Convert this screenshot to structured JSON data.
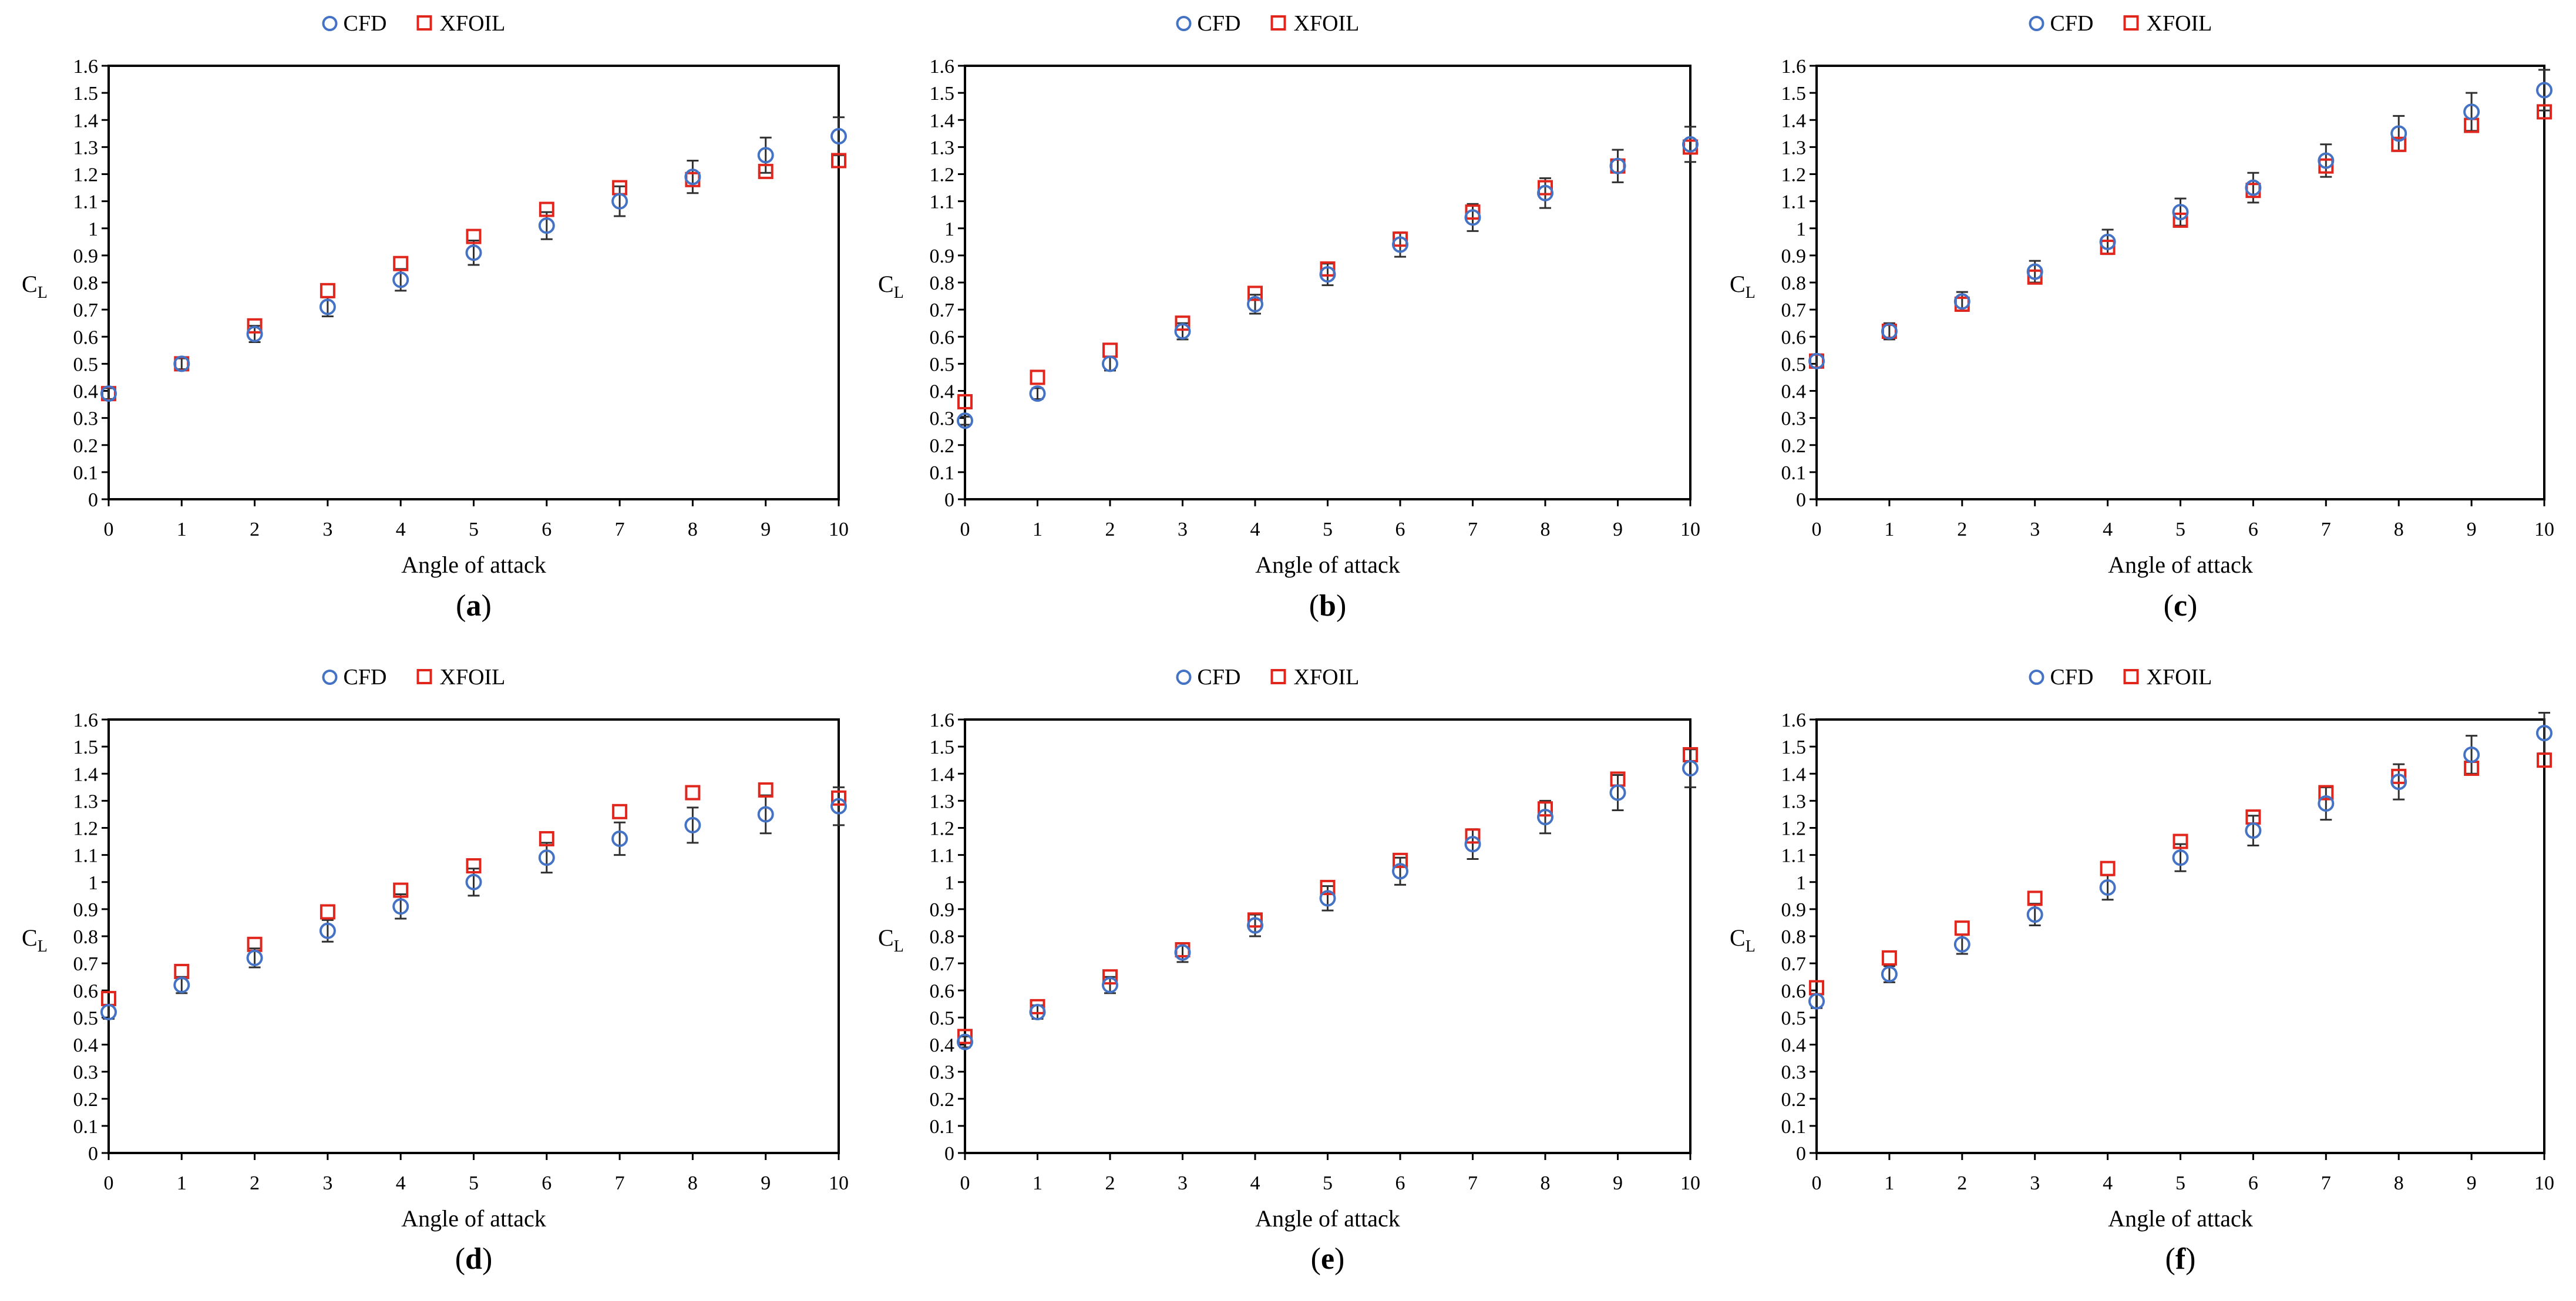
{
  "figure": {
    "legend": {
      "cfd": "CFD",
      "xfoil": "XFOIL"
    },
    "colors": {
      "cfd": "#4472C4",
      "xfoil": "#E0261D",
      "error_bar": "#303030",
      "axis": "#000000"
    }
  },
  "chart_data": [
    {
      "panel": "a",
      "type": "scatter",
      "xlabel": "Angle of attack",
      "ylabel": "CL",
      "xlim": [
        0,
        10
      ],
      "ylim": [
        0,
        1.6
      ],
      "x": [
        0,
        1,
        2,
        3,
        4,
        5,
        6,
        7,
        8,
        9,
        10
      ],
      "x_tick_labels": [
        "0",
        "1",
        "2",
        "3",
        "4",
        "5",
        "6",
        "7",
        "8",
        "9",
        "10"
      ],
      "y_tick_labels": [
        "0",
        "0.1",
        "0.2",
        "0.3",
        "0.4",
        "0.5",
        "0.6",
        "0.7",
        "0.8",
        "0.9",
        "1",
        "1.1",
        "1.2",
        "1.3",
        "1.4",
        "1.5",
        "1.6"
      ],
      "series": [
        {
          "name": "CFD",
          "values": [
            0.39,
            0.5,
            0.61,
            0.71,
            0.81,
            0.91,
            1.01,
            1.1,
            1.19,
            1.27,
            1.34
          ],
          "error": [
            0.02,
            0.02,
            0.03,
            0.035,
            0.04,
            0.045,
            0.05,
            0.055,
            0.06,
            0.065,
            0.07
          ]
        },
        {
          "name": "XFOIL",
          "values": [
            0.39,
            0.5,
            0.64,
            0.77,
            0.87,
            0.97,
            1.07,
            1.15,
            1.18,
            1.21,
            1.25
          ]
        }
      ]
    },
    {
      "panel": "b",
      "type": "scatter",
      "xlabel": "Angle of attack",
      "ylabel": "CL",
      "xlim": [
        0,
        10
      ],
      "ylim": [
        0,
        1.6
      ],
      "x": [
        0,
        1,
        2,
        3,
        4,
        5,
        6,
        7,
        8,
        9,
        10
      ],
      "x_tick_labels": [
        "0",
        "1",
        "2",
        "3",
        "4",
        "5",
        "6",
        "7",
        "8",
        "9",
        "10"
      ],
      "y_tick_labels": [
        "0",
        "0.1",
        "0.2",
        "0.3",
        "0.4",
        "0.5",
        "0.6",
        "0.7",
        "0.8",
        "0.9",
        "1",
        "1.1",
        "1.2",
        "1.3",
        "1.4",
        "1.5",
        "1.6"
      ],
      "series": [
        {
          "name": "CFD",
          "values": [
            0.29,
            0.39,
            0.5,
            0.62,
            0.72,
            0.83,
            0.94,
            1.04,
            1.13,
            1.23,
            1.31
          ],
          "error": [
            0.015,
            0.02,
            0.025,
            0.03,
            0.035,
            0.04,
            0.045,
            0.05,
            0.055,
            0.06,
            0.065
          ]
        },
        {
          "name": "XFOIL",
          "values": [
            0.36,
            0.45,
            0.55,
            0.65,
            0.76,
            0.85,
            0.96,
            1.06,
            1.15,
            1.23,
            1.3
          ]
        }
      ]
    },
    {
      "panel": "c",
      "type": "scatter",
      "xlabel": "Angle of attack",
      "ylabel": "CL",
      "xlim": [
        0,
        10
      ],
      "ylim": [
        0,
        1.6
      ],
      "x": [
        0,
        1,
        2,
        3,
        4,
        5,
        6,
        7,
        8,
        9,
        10
      ],
      "x_tick_labels": [
        "0",
        "1",
        "2",
        "3",
        "4",
        "5",
        "6",
        "7",
        "8",
        "9",
        "10"
      ],
      "y_tick_labels": [
        "0",
        "0.1",
        "0.2",
        "0.3",
        "0.4",
        "0.5",
        "0.6",
        "0.7",
        "0.8",
        "0.9",
        "1",
        "1.1",
        "1.2",
        "1.3",
        "1.4",
        "1.5",
        "1.6"
      ],
      "series": [
        {
          "name": "CFD",
          "values": [
            0.51,
            0.62,
            0.73,
            0.84,
            0.95,
            1.06,
            1.15,
            1.25,
            1.35,
            1.43,
            1.51
          ],
          "error": [
            0.025,
            0.03,
            0.035,
            0.04,
            0.045,
            0.05,
            0.055,
            0.06,
            0.065,
            0.07,
            0.075
          ]
        },
        {
          "name": "XFOIL",
          "values": [
            0.51,
            0.62,
            0.72,
            0.82,
            0.93,
            1.03,
            1.14,
            1.23,
            1.31,
            1.38,
            1.43
          ]
        }
      ]
    },
    {
      "panel": "d",
      "type": "scatter",
      "xlabel": "Angle of attack",
      "ylabel": "CL",
      "xlim": [
        0,
        10
      ],
      "ylim": [
        0,
        1.6
      ],
      "x": [
        0,
        1,
        2,
        3,
        4,
        5,
        6,
        7,
        8,
        9,
        10
      ],
      "x_tick_labels": [
        "0",
        "1",
        "2",
        "3",
        "4",
        "5",
        "6",
        "7",
        "8",
        "9",
        "10"
      ],
      "y_tick_labels": [
        "0",
        "0.1",
        "0.2",
        "0.3",
        "0.4",
        "0.5",
        "0.6",
        "0.7",
        "0.8",
        "0.9",
        "1",
        "1.1",
        "1.2",
        "1.3",
        "1.4",
        "1.5",
        "1.6"
      ],
      "series": [
        {
          "name": "CFD",
          "values": [
            0.52,
            0.62,
            0.72,
            0.82,
            0.91,
            1.0,
            1.09,
            1.16,
            1.21,
            1.25,
            1.28
          ],
          "error": [
            0.025,
            0.03,
            0.035,
            0.04,
            0.045,
            0.05,
            0.055,
            0.06,
            0.065,
            0.07,
            0.07
          ]
        },
        {
          "name": "XFOIL",
          "values": [
            0.57,
            0.67,
            0.77,
            0.89,
            0.97,
            1.06,
            1.16,
            1.26,
            1.33,
            1.34,
            1.31
          ]
        }
      ]
    },
    {
      "panel": "e",
      "type": "scatter",
      "xlabel": "Angle of attack",
      "ylabel": "CL",
      "xlim": [
        0,
        10
      ],
      "ylim": [
        0,
        1.6
      ],
      "x": [
        0,
        1,
        2,
        3,
        4,
        5,
        6,
        7,
        8,
        9,
        10
      ],
      "x_tick_labels": [
        "0",
        "1",
        "2",
        "3",
        "4",
        "5",
        "6",
        "7",
        "8",
        "9",
        "10"
      ],
      "y_tick_labels": [
        "0",
        "0.1",
        "0.2",
        "0.3",
        "0.4",
        "0.5",
        "0.6",
        "0.7",
        "0.8",
        "0.9",
        "1",
        "1.1",
        "1.2",
        "1.3",
        "1.4",
        "1.5",
        "1.6"
      ],
      "series": [
        {
          "name": "CFD",
          "values": [
            0.41,
            0.52,
            0.62,
            0.74,
            0.84,
            0.94,
            1.04,
            1.14,
            1.24,
            1.33,
            1.42
          ],
          "error": [
            0.02,
            0.025,
            0.03,
            0.035,
            0.04,
            0.045,
            0.05,
            0.055,
            0.06,
            0.065,
            0.07
          ]
        },
        {
          "name": "XFOIL",
          "values": [
            0.43,
            0.54,
            0.65,
            0.75,
            0.86,
            0.98,
            1.08,
            1.17,
            1.27,
            1.38,
            1.47
          ]
        }
      ]
    },
    {
      "panel": "f",
      "type": "scatter",
      "xlabel": "Angle of attack",
      "ylabel": "CL",
      "xlim": [
        0,
        10
      ],
      "ylim": [
        0,
        1.6
      ],
      "x": [
        0,
        1,
        2,
        3,
        4,
        5,
        6,
        7,
        8,
        9,
        10
      ],
      "x_tick_labels": [
        "0",
        "1",
        "2",
        "3",
        "4",
        "5",
        "6",
        "7",
        "8",
        "9",
        "10"
      ],
      "y_tick_labels": [
        "0",
        "0.1",
        "0.2",
        "0.3",
        "0.4",
        "0.5",
        "0.6",
        "0.7",
        "0.8",
        "0.9",
        "1",
        "1.1",
        "1.2",
        "1.3",
        "1.4",
        "1.5",
        "1.6"
      ],
      "series": [
        {
          "name": "CFD",
          "values": [
            0.56,
            0.66,
            0.77,
            0.88,
            0.98,
            1.09,
            1.19,
            1.29,
            1.37,
            1.47,
            1.55
          ],
          "error": [
            0.025,
            0.03,
            0.035,
            0.04,
            0.045,
            0.05,
            0.055,
            0.06,
            0.065,
            0.07,
            0.075
          ]
        },
        {
          "name": "XFOIL",
          "values": [
            0.61,
            0.72,
            0.83,
            0.94,
            1.05,
            1.15,
            1.24,
            1.33,
            1.39,
            1.42,
            1.45
          ]
        }
      ]
    }
  ]
}
